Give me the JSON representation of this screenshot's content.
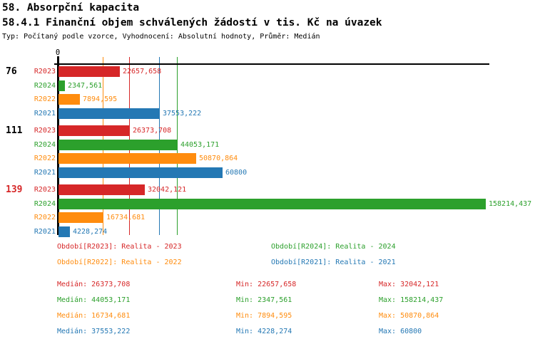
{
  "header": {
    "title": "58. Absorpční kapacita",
    "subtitle": "58.4.1 Finanční objem schválených žádostí v tis. Kč na úvazek",
    "meta": "Typ: Počítaný podle vzorce, Vyhodnocení: Absolutní hodnoty, Průměr: Medián"
  },
  "colors": {
    "R2023": "#d62728",
    "R2024": "#2ca02c",
    "R2022": "#ff8c0e",
    "R2021": "#2478b4",
    "axis": "#000000"
  },
  "chart_data": {
    "type": "bar",
    "orientation": "horizontal",
    "unit": "tis. Kč na úvazek",
    "x_axis": {
      "zero_label": "0",
      "max_value": 158214.437
    },
    "groups": [
      {
        "label": "76",
        "label_color": "#000000",
        "bars": [
          {
            "series": "R2023",
            "value": 22657.658,
            "display": "22657,658"
          },
          {
            "series": "R2024",
            "value": 2347.561,
            "display": "2347,561"
          },
          {
            "series": "R2022",
            "value": 7894.595,
            "display": "7894,595"
          },
          {
            "series": "R2021",
            "value": 37553.222,
            "display": "37553,222"
          }
        ]
      },
      {
        "label": "111",
        "label_color": "#000000",
        "bars": [
          {
            "series": "R2023",
            "value": 26373.708,
            "display": "26373,708"
          },
          {
            "series": "R2024",
            "value": 44053.171,
            "display": "44053,171"
          },
          {
            "series": "R2022",
            "value": 50870.864,
            "display": "50870,864"
          },
          {
            "series": "R2021",
            "value": 60800,
            "display": "60800"
          }
        ]
      },
      {
        "label": "139",
        "label_color": "#d62728",
        "bars": [
          {
            "series": "R2023",
            "value": 32042.121,
            "display": "32042,121"
          },
          {
            "series": "R2024",
            "value": 158214.437,
            "display": "158214,437"
          },
          {
            "series": "R2022",
            "value": 16734.681,
            "display": "16734,681"
          },
          {
            "series": "R2021",
            "value": 4228.274,
            "display": "4228,274"
          }
        ]
      }
    ],
    "median_lines": [
      {
        "series": "R2022",
        "value": 16734.681
      },
      {
        "series": "R2023",
        "value": 26373.708
      },
      {
        "series": "R2021",
        "value": 37553.222
      },
      {
        "series": "R2024",
        "value": 44053.171
      }
    ]
  },
  "legend": {
    "items": [
      {
        "series": "R2023",
        "text": "Období[R2023]: Realita - 2023",
        "row": 0,
        "col": 0
      },
      {
        "series": "R2024",
        "text": "Období[R2024]: Realita - 2024",
        "row": 0,
        "col": 1
      },
      {
        "series": "R2022",
        "text": "Období[R2022]: Realita - 2022",
        "row": 1,
        "col": 0
      },
      {
        "series": "R2021",
        "text": "Období[R2021]: Realita - 2021",
        "row": 1,
        "col": 1
      }
    ]
  },
  "stats": {
    "rows": [
      {
        "series": "R2023",
        "median": "Medián: 26373,708",
        "min": "Min: 22657,658",
        "max": "Max: 32042,121"
      },
      {
        "series": "R2024",
        "median": "Medián: 44053,171",
        "min": "Min: 2347,561",
        "max": "Max: 158214,437"
      },
      {
        "series": "R2022",
        "median": "Medián: 16734,681",
        "min": "Min: 7894,595",
        "max": "Max: 50870,864"
      },
      {
        "series": "R2021",
        "median": "Medián: 37553,222",
        "min": "Min: 4228,274",
        "max": "Max: 60800"
      }
    ]
  }
}
